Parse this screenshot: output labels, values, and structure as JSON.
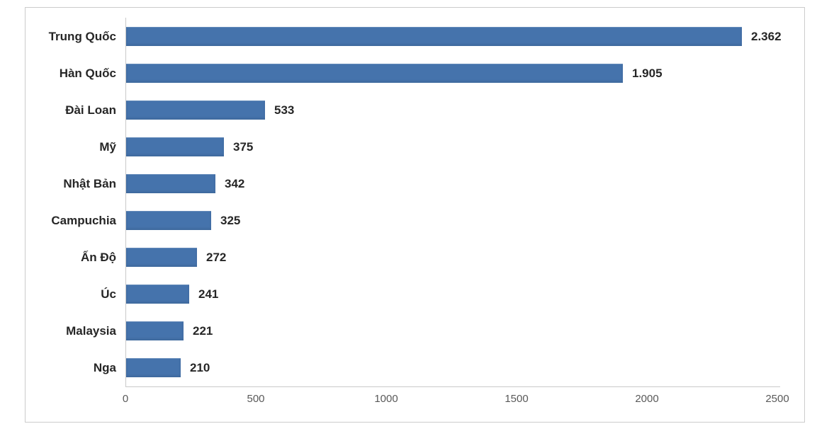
{
  "chart_data": {
    "type": "bar",
    "orientation": "horizontal",
    "title": "",
    "xlabel": "",
    "ylabel": "",
    "categories": [
      "Trung Quốc",
      "Hàn Quốc",
      "Đài Loan",
      "Mỹ",
      "Nhật Bản",
      "Campuchia",
      "Ấn Độ",
      "Úc",
      "Malaysia",
      "Nga"
    ],
    "values": [
      2362,
      1905,
      533,
      375,
      342,
      325,
      272,
      241,
      221,
      210
    ],
    "display_values": [
      "2.362",
      "1.905",
      "533",
      "375",
      "342",
      "325",
      "272",
      "241",
      "221",
      "210"
    ],
    "xlim": [
      0,
      2500
    ],
    "x_ticks": [
      0,
      500,
      1000,
      1500,
      2000,
      2500
    ],
    "x_tick_labels": [
      "0",
      "500",
      "1000",
      "1500",
      "2000",
      "2500"
    ],
    "grid": false,
    "legend": false,
    "bar_color": "#4573ac"
  },
  "colors": {
    "bar": "#4573ac",
    "label_text": "#262626",
    "tick_text": "#595959",
    "axis_line": "#c9c9c9",
    "frame_border": "#cccccc",
    "background": "#ffffff"
  }
}
